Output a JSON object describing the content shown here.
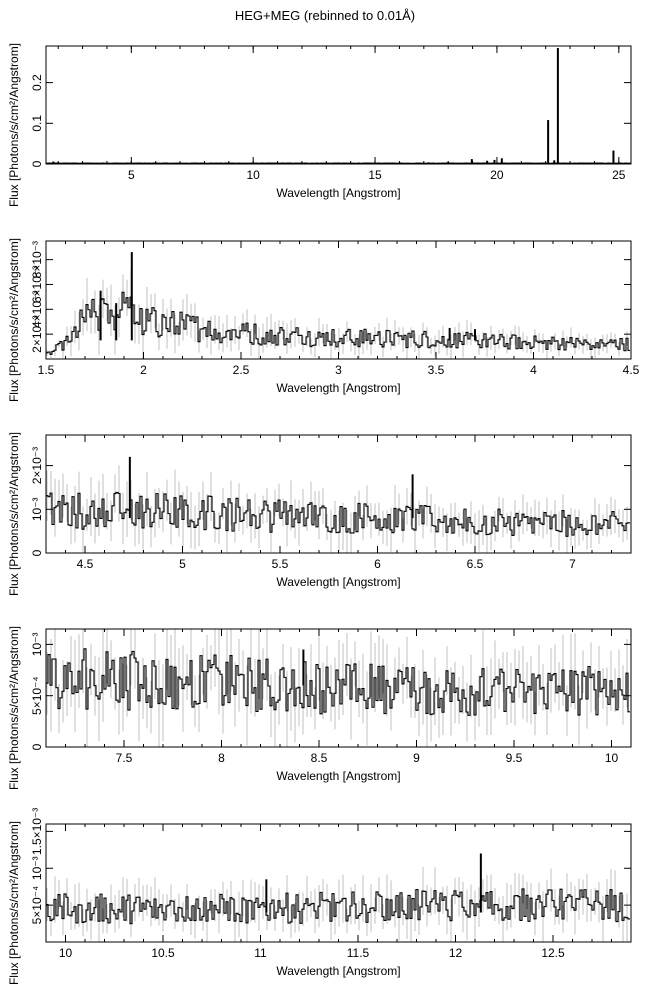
{
  "title": "HEG+MEG (rebinned to 0.01Å)",
  "colors": {
    "axis": "#000000",
    "data": "#000000",
    "error": "#999999",
    "background": "#ffffff"
  },
  "chart_data": [
    {
      "type": "line",
      "xlabel": "Wavelength [Angstrom]",
      "ylabel": "Flux [Photons/s/cm²/Angstrom]",
      "xlim": [
        1.5,
        25.5
      ],
      "ylim": [
        0,
        0.29
      ],
      "xticks": [
        5,
        10,
        15,
        20,
        25
      ],
      "xtick_labels": [
        "5",
        "10",
        "15",
        "20",
        "25"
      ],
      "yticks": [
        0,
        0.1,
        0.2
      ],
      "ytick_labels": [
        "0",
        "0.1",
        "0.2"
      ],
      "baseline": 0.002,
      "lines": [
        {
          "x": 1.8,
          "y": 0.006
        },
        {
          "x": 2.0,
          "y": 0.004
        },
        {
          "x": 17.2,
          "y": 0.004
        },
        {
          "x": 18.0,
          "y": 0.005
        },
        {
          "x": 18.97,
          "y": 0.012
        },
        {
          "x": 19.6,
          "y": 0.008
        },
        {
          "x": 19.9,
          "y": 0.01
        },
        {
          "x": 20.2,
          "y": 0.014
        },
        {
          "x": 22.1,
          "y": 0.108
        },
        {
          "x": 22.35,
          "y": 0.009
        },
        {
          "x": 22.5,
          "y": 0.285
        },
        {
          "x": 24.78,
          "y": 0.033
        }
      ]
    },
    {
      "type": "line",
      "xlabel": "Wavelength [Angstrom]",
      "ylabel": "Flux [Photons/s/cm²/Angstrom]",
      "xlim": [
        1.5,
        4.5
      ],
      "ylim": [
        0,
        0.0095
      ],
      "xticks": [
        1.5,
        2,
        2.5,
        3,
        3.5,
        4,
        4.5
      ],
      "xtick_labels": [
        "1.5",
        "2",
        "2.5",
        "3",
        "3.5",
        "4",
        "4.5"
      ],
      "yticks": [
        0.002,
        0.004,
        0.006,
        0.008
      ],
      "ytick_labels": [
        "2×10⁻³",
        "4×10⁻³",
        "6×10⁻³",
        "8×10⁻³"
      ],
      "baseline": 0.0015,
      "lines": [
        {
          "x": 1.78,
          "y": 0.0055
        },
        {
          "x": 1.86,
          "y": 0.0045
        },
        {
          "x": 1.94,
          "y": 0.0086
        },
        {
          "x": 3.57,
          "y": 0.0025
        },
        {
          "x": 3.7,
          "y": 0.0024
        }
      ],
      "profile": [
        [
          1.5,
          0.0003
        ],
        [
          1.6,
          0.0012
        ],
        [
          1.7,
          0.0032
        ],
        [
          1.9,
          0.0039
        ],
        [
          2.0,
          0.003
        ],
        [
          2.5,
          0.0021
        ],
        [
          3.0,
          0.0017
        ],
        [
          3.5,
          0.0016
        ],
        [
          4.0,
          0.0013
        ],
        [
          4.5,
          0.0012
        ]
      ]
    },
    {
      "type": "line",
      "xlabel": "Wavelength [Angstrom]",
      "ylabel": "Flux [Photons/s/cm²/Angstrom]",
      "xlim": [
        4.3,
        7.3
      ],
      "ylim": [
        0,
        0.0027
      ],
      "xticks": [
        4.5,
        5,
        5.5,
        6,
        6.5,
        7
      ],
      "xtick_labels": [
        "4.5",
        "5",
        "5.5",
        "6",
        "6.5",
        "7"
      ],
      "yticks": [
        0,
        0.001,
        0.002
      ],
      "ytick_labels": [
        "0",
        "10⁻³",
        "2×10⁻³"
      ],
      "baseline": 0.0008,
      "lines": [
        {
          "x": 4.73,
          "y": 0.0022
        },
        {
          "x": 6.18,
          "y": 0.0018
        }
      ],
      "profile": [
        [
          4.3,
          0.001
        ],
        [
          5.0,
          0.00095
        ],
        [
          5.5,
          0.00085
        ],
        [
          6.0,
          0.0008
        ],
        [
          6.5,
          0.0007
        ],
        [
          7.3,
          0.00065
        ]
      ]
    },
    {
      "type": "line",
      "xlabel": "Wavelength [Angstrom]",
      "ylabel": "Flux [Photons/s/cm²/Angstrom]",
      "xlim": [
        7.1,
        10.1
      ],
      "ylim": [
        0,
        0.00115
      ],
      "xticks": [
        7.5,
        8,
        8.5,
        9,
        9.5,
        10
      ],
      "xtick_labels": [
        "7.5",
        "8",
        "8.5",
        "9",
        "9.5",
        "10"
      ],
      "yticks": [
        0,
        0.0005,
        0.001
      ],
      "ytick_labels": [
        "0",
        "5×10⁻⁴",
        "10⁻³"
      ],
      "baseline": 0.0006,
      "lines": [
        {
          "x": 8.42,
          "y": 0.00095
        }
      ],
      "profile": [
        [
          7.1,
          0.00068
        ],
        [
          8.0,
          0.00062
        ],
        [
          9.0,
          0.00055
        ],
        [
          10.1,
          0.00055
        ]
      ]
    },
    {
      "type": "line",
      "xlabel": "Wavelength [Angstrom]",
      "ylabel": "Flux [Photons/s/cm²/Angstrom]",
      "xlim": [
        9.9,
        12.9
      ],
      "ylim": [
        0,
        0.0016
      ],
      "xticks": [
        10,
        10.5,
        11,
        11.5,
        12,
        12.5
      ],
      "xtick_labels": [
        "10",
        "10.5",
        "11",
        "11.5",
        "12",
        "12.5"
      ],
      "yticks": [
        0.0005,
        0.001,
        0.0015
      ],
      "ytick_labels": [
        "5×10⁻⁴",
        "10⁻³",
        "1.5×10⁻³"
      ],
      "baseline": 0.0004,
      "lines": [
        {
          "x": 11.03,
          "y": 0.00085
        },
        {
          "x": 12.13,
          "y": 0.0012
        }
      ],
      "profile": [
        [
          9.9,
          0.00045
        ],
        [
          11.0,
          0.00045
        ],
        [
          12.0,
          0.0005
        ],
        [
          12.9,
          0.0005
        ]
      ]
    }
  ]
}
